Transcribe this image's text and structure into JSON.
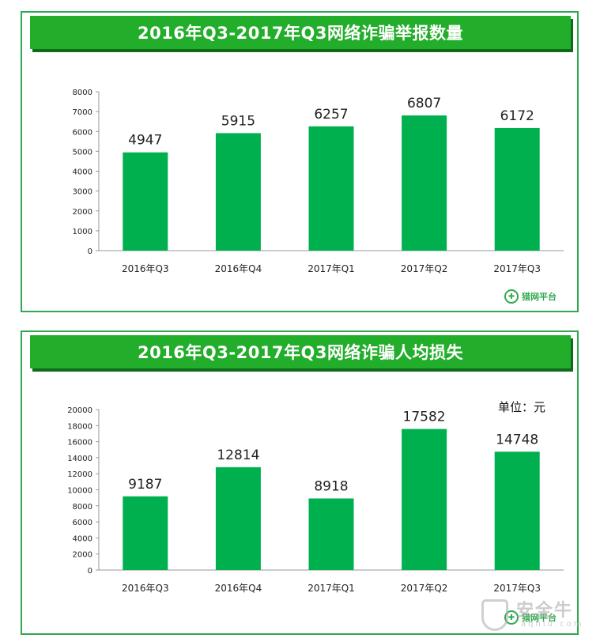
{
  "charts": [
    {
      "title": "2016年Q3-2017年Q3网络诈骗举报数量",
      "logo_text": "猎网平台"
    },
    {
      "title": "2016年Q3-2017年Q3网络诈骗人均损失",
      "unit_label": "单位：元",
      "logo_text": "猎网平台"
    }
  ],
  "watermark": {
    "text": "安全牛",
    "sub": "aqniu.com"
  },
  "colors": {
    "bar": "#00b04f",
    "banner": "#22ad2a",
    "border": "#2fa84f"
  },
  "chart_data": [
    {
      "type": "bar",
      "title": "2016年Q3-2017年Q3网络诈骗举报数量",
      "categories": [
        "2016年Q3",
        "2016年Q4",
        "2017年Q1",
        "2017年Q2",
        "2017年Q3"
      ],
      "values": [
        4947,
        5915,
        6257,
        6807,
        6172
      ],
      "ylim": [
        0,
        8000
      ],
      "yticks": [
        0,
        1000,
        2000,
        3000,
        4000,
        5000,
        6000,
        7000,
        8000
      ],
      "grid": false,
      "data_labels": true
    },
    {
      "type": "bar",
      "title": "2016年Q3-2017年Q3网络诈骗人均损失",
      "categories": [
        "2016年Q3",
        "2016年Q4",
        "2017年Q1",
        "2017年Q2",
        "2017年Q3"
      ],
      "values": [
        9187,
        12814,
        8918,
        17582,
        14748
      ],
      "ylim": [
        0,
        20000
      ],
      "yticks": [
        0,
        2000,
        4000,
        6000,
        8000,
        10000,
        12000,
        14000,
        16000,
        18000,
        20000
      ],
      "grid": false,
      "data_labels": true
    }
  ]
}
